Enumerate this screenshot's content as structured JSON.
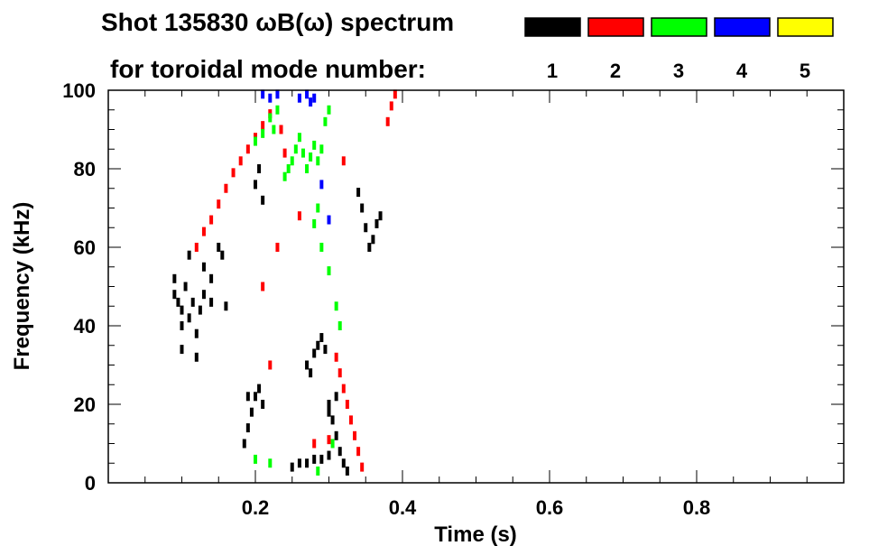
{
  "chart_data": {
    "type": "scatter",
    "title_line1": "Shot 135830 ωB(ω) spectrum",
    "title_line2": "for toroidal mode number:",
    "xlabel": "Time (s)",
    "ylabel": "Frequency (kHz)",
    "xlim": [
      0.0,
      1.0
    ],
    "ylim": [
      0,
      100
    ],
    "x_ticks": [
      0.2,
      0.4,
      0.6,
      0.8
    ],
    "y_ticks": [
      0,
      20,
      40,
      60,
      80,
      100
    ],
    "legend": [
      {
        "label": "1",
        "color": "#000000"
      },
      {
        "label": "2",
        "color": "#ff0000"
      },
      {
        "label": "3",
        "color": "#00ff00"
      },
      {
        "label": "4",
        "color": "#0000ff"
      },
      {
        "label": "5",
        "color": "#ffff00"
      }
    ],
    "legend_placement": "top-right",
    "series": [
      {
        "name": "1",
        "color": "#000000",
        "points": [
          [
            0.09,
            52
          ],
          [
            0.09,
            48
          ],
          [
            0.095,
            46
          ],
          [
            0.1,
            44
          ],
          [
            0.1,
            40
          ],
          [
            0.105,
            50
          ],
          [
            0.11,
            42
          ],
          [
            0.115,
            46
          ],
          [
            0.12,
            38
          ],
          [
            0.125,
            44
          ],
          [
            0.13,
            48
          ],
          [
            0.13,
            55
          ],
          [
            0.14,
            46
          ],
          [
            0.14,
            52
          ],
          [
            0.15,
            60
          ],
          [
            0.155,
            58
          ],
          [
            0.11,
            58
          ],
          [
            0.1,
            34
          ],
          [
            0.12,
            32
          ],
          [
            0.16,
            45
          ],
          [
            0.19,
            22
          ],
          [
            0.195,
            18
          ],
          [
            0.2,
            22
          ],
          [
            0.205,
            24
          ],
          [
            0.21,
            20
          ],
          [
            0.19,
            14
          ],
          [
            0.185,
            10
          ],
          [
            0.2,
            76
          ],
          [
            0.205,
            80
          ],
          [
            0.21,
            72
          ],
          [
            0.27,
            30
          ],
          [
            0.28,
            33
          ],
          [
            0.285,
            35
          ],
          [
            0.29,
            37
          ],
          [
            0.295,
            34
          ],
          [
            0.275,
            28
          ],
          [
            0.3,
            20
          ],
          [
            0.305,
            16
          ],
          [
            0.31,
            12
          ],
          [
            0.315,
            8
          ],
          [
            0.32,
            5
          ],
          [
            0.325,
            3
          ],
          [
            0.31,
            22
          ],
          [
            0.3,
            18
          ],
          [
            0.25,
            4
          ],
          [
            0.26,
            5
          ],
          [
            0.27,
            5
          ],
          [
            0.28,
            6
          ],
          [
            0.29,
            6
          ],
          [
            0.3,
            7
          ],
          [
            0.345,
            70
          ],
          [
            0.35,
            65
          ],
          [
            0.355,
            60
          ],
          [
            0.36,
            62
          ],
          [
            0.365,
            66
          ],
          [
            0.37,
            68
          ],
          [
            0.34,
            74
          ]
        ]
      },
      {
        "name": "2",
        "color": "#ff0000",
        "points": [
          [
            0.12,
            60
          ],
          [
            0.13,
            64
          ],
          [
            0.14,
            67
          ],
          [
            0.15,
            71
          ],
          [
            0.16,
            75
          ],
          [
            0.17,
            79
          ],
          [
            0.18,
            82
          ],
          [
            0.19,
            85
          ],
          [
            0.2,
            88
          ],
          [
            0.21,
            91
          ],
          [
            0.22,
            94
          ],
          [
            0.235,
            90
          ],
          [
            0.24,
            84
          ],
          [
            0.21,
            50
          ],
          [
            0.22,
            30
          ],
          [
            0.23,
            60
          ],
          [
            0.26,
            68
          ],
          [
            0.31,
            32
          ],
          [
            0.315,
            28
          ],
          [
            0.32,
            24
          ],
          [
            0.325,
            20
          ],
          [
            0.33,
            16
          ],
          [
            0.335,
            12
          ],
          [
            0.34,
            8
          ],
          [
            0.345,
            4
          ],
          [
            0.32,
            82
          ],
          [
            0.38,
            92
          ],
          [
            0.385,
            96
          ],
          [
            0.39,
            99
          ],
          [
            0.28,
            10
          ],
          [
            0.3,
            11
          ]
        ]
      },
      {
        "name": "3",
        "color": "#00ff00",
        "points": [
          [
            0.2,
            87
          ],
          [
            0.21,
            89
          ],
          [
            0.22,
            93
          ],
          [
            0.225,
            90
          ],
          [
            0.23,
            95
          ],
          [
            0.24,
            78
          ],
          [
            0.245,
            80
          ],
          [
            0.25,
            82
          ],
          [
            0.255,
            85
          ],
          [
            0.26,
            88
          ],
          [
            0.265,
            84
          ],
          [
            0.27,
            80
          ],
          [
            0.275,
            83
          ],
          [
            0.28,
            86
          ],
          [
            0.285,
            82
          ],
          [
            0.29,
            85
          ],
          [
            0.295,
            92
          ],
          [
            0.3,
            95
          ],
          [
            0.28,
            66
          ],
          [
            0.285,
            70
          ],
          [
            0.29,
            60
          ],
          [
            0.3,
            54
          ],
          [
            0.31,
            45
          ],
          [
            0.315,
            40
          ],
          [
            0.2,
            6
          ],
          [
            0.22,
            5
          ],
          [
            0.285,
            3
          ],
          [
            0.305,
            10
          ]
        ]
      },
      {
        "name": "4",
        "color": "#0000ff",
        "points": [
          [
            0.21,
            99
          ],
          [
            0.22,
            98
          ],
          [
            0.23,
            99
          ],
          [
            0.26,
            98
          ],
          [
            0.27,
            99
          ],
          [
            0.275,
            97
          ],
          [
            0.28,
            98
          ],
          [
            0.29,
            76
          ],
          [
            0.3,
            67
          ]
        ]
      },
      {
        "name": "5",
        "color": "#ffff00",
        "points": []
      }
    ]
  }
}
